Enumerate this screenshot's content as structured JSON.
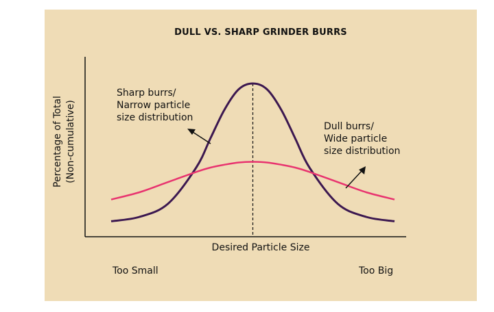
{
  "chart_data": {
    "type": "line",
    "title": "DULL VS. SHARP GRINDER BURRS",
    "xlabel": "Desired Particle Size",
    "ylabel_lines": [
      "Percentage of Total",
      "(Non-cumulative)"
    ],
    "x_tick_labels": {
      "left": "Too Small",
      "right": "Too Big"
    },
    "x": [
      -1,
      -0.8,
      -0.6,
      -0.4,
      -0.3,
      -0.2,
      -0.1,
      0,
      0.1,
      0.2,
      0.3,
      0.4,
      0.6,
      0.8,
      1
    ],
    "series": [
      {
        "name": "Sharp burrs/ Narrow particle size distribution",
        "label_lines": [
          "Sharp burrs/",
          "Narrow particle",
          "size distribution"
        ],
        "color": "#3c1850",
        "values": [
          0.05,
          0.08,
          0.17,
          0.42,
          0.62,
          0.82,
          0.96,
          1.0,
          0.96,
          0.82,
          0.62,
          0.42,
          0.17,
          0.08,
          0.05
        ]
      },
      {
        "name": "Dull burrs/ Wide particle size distribution",
        "label_lines": [
          "Dull burrs/",
          "Wide particle",
          "size distribution"
        ],
        "color": "#e8336f",
        "values": [
          0.2,
          0.25,
          0.32,
          0.39,
          0.42,
          0.44,
          0.455,
          0.46,
          0.455,
          0.44,
          0.42,
          0.39,
          0.32,
          0.25,
          0.2
        ]
      }
    ],
    "reference_line": {
      "x": 0,
      "style": "dashed"
    },
    "grid": false
  }
}
